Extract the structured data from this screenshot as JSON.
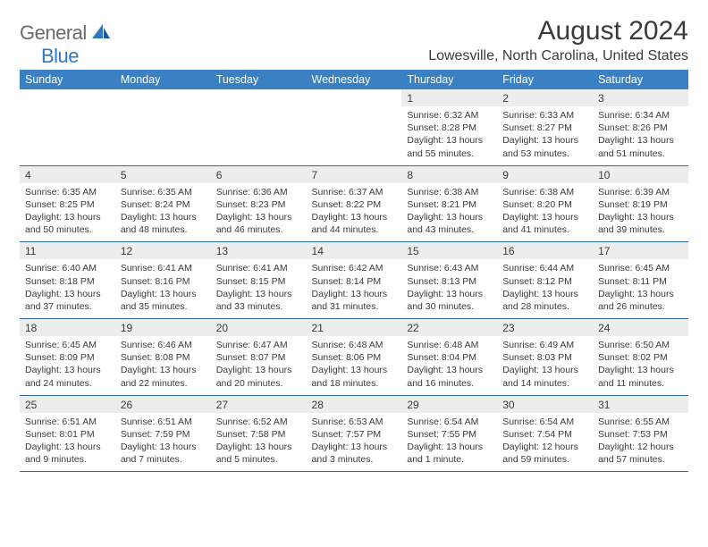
{
  "logo": {
    "text1": "General",
    "text2": "Blue",
    "color_gray": "#6a6a6a",
    "color_blue": "#2f78bd"
  },
  "title": "August 2024",
  "location": "Lowesville, North Carolina, United States",
  "colors": {
    "header_bg": "#3a81c4",
    "header_text": "#ffffff",
    "daynum_bg": "#ededed",
    "border": "#2f6aa8",
    "text": "#3a3a3a",
    "background": "#ffffff"
  },
  "weekdays": [
    "Sunday",
    "Monday",
    "Tuesday",
    "Wednesday",
    "Thursday",
    "Friday",
    "Saturday"
  ],
  "weeks": [
    [
      null,
      null,
      null,
      null,
      {
        "d": "1",
        "sr": "6:32 AM",
        "ss": "8:28 PM",
        "dl": "13 hours and 55 minutes."
      },
      {
        "d": "2",
        "sr": "6:33 AM",
        "ss": "8:27 PM",
        "dl": "13 hours and 53 minutes."
      },
      {
        "d": "3",
        "sr": "6:34 AM",
        "ss": "8:26 PM",
        "dl": "13 hours and 51 minutes."
      }
    ],
    [
      {
        "d": "4",
        "sr": "6:35 AM",
        "ss": "8:25 PM",
        "dl": "13 hours and 50 minutes."
      },
      {
        "d": "5",
        "sr": "6:35 AM",
        "ss": "8:24 PM",
        "dl": "13 hours and 48 minutes."
      },
      {
        "d": "6",
        "sr": "6:36 AM",
        "ss": "8:23 PM",
        "dl": "13 hours and 46 minutes."
      },
      {
        "d": "7",
        "sr": "6:37 AM",
        "ss": "8:22 PM",
        "dl": "13 hours and 44 minutes."
      },
      {
        "d": "8",
        "sr": "6:38 AM",
        "ss": "8:21 PM",
        "dl": "13 hours and 43 minutes."
      },
      {
        "d": "9",
        "sr": "6:38 AM",
        "ss": "8:20 PM",
        "dl": "13 hours and 41 minutes."
      },
      {
        "d": "10",
        "sr": "6:39 AM",
        "ss": "8:19 PM",
        "dl": "13 hours and 39 minutes."
      }
    ],
    [
      {
        "d": "11",
        "sr": "6:40 AM",
        "ss": "8:18 PM",
        "dl": "13 hours and 37 minutes."
      },
      {
        "d": "12",
        "sr": "6:41 AM",
        "ss": "8:16 PM",
        "dl": "13 hours and 35 minutes."
      },
      {
        "d": "13",
        "sr": "6:41 AM",
        "ss": "8:15 PM",
        "dl": "13 hours and 33 minutes."
      },
      {
        "d": "14",
        "sr": "6:42 AM",
        "ss": "8:14 PM",
        "dl": "13 hours and 31 minutes."
      },
      {
        "d": "15",
        "sr": "6:43 AM",
        "ss": "8:13 PM",
        "dl": "13 hours and 30 minutes."
      },
      {
        "d": "16",
        "sr": "6:44 AM",
        "ss": "8:12 PM",
        "dl": "13 hours and 28 minutes."
      },
      {
        "d": "17",
        "sr": "6:45 AM",
        "ss": "8:11 PM",
        "dl": "13 hours and 26 minutes."
      }
    ],
    [
      {
        "d": "18",
        "sr": "6:45 AM",
        "ss": "8:09 PM",
        "dl": "13 hours and 24 minutes."
      },
      {
        "d": "19",
        "sr": "6:46 AM",
        "ss": "8:08 PM",
        "dl": "13 hours and 22 minutes."
      },
      {
        "d": "20",
        "sr": "6:47 AM",
        "ss": "8:07 PM",
        "dl": "13 hours and 20 minutes."
      },
      {
        "d": "21",
        "sr": "6:48 AM",
        "ss": "8:06 PM",
        "dl": "13 hours and 18 minutes."
      },
      {
        "d": "22",
        "sr": "6:48 AM",
        "ss": "8:04 PM",
        "dl": "13 hours and 16 minutes."
      },
      {
        "d": "23",
        "sr": "6:49 AM",
        "ss": "8:03 PM",
        "dl": "13 hours and 14 minutes."
      },
      {
        "d": "24",
        "sr": "6:50 AM",
        "ss": "8:02 PM",
        "dl": "13 hours and 11 minutes."
      }
    ],
    [
      {
        "d": "25",
        "sr": "6:51 AM",
        "ss": "8:01 PM",
        "dl": "13 hours and 9 minutes."
      },
      {
        "d": "26",
        "sr": "6:51 AM",
        "ss": "7:59 PM",
        "dl": "13 hours and 7 minutes."
      },
      {
        "d": "27",
        "sr": "6:52 AM",
        "ss": "7:58 PM",
        "dl": "13 hours and 5 minutes."
      },
      {
        "d": "28",
        "sr": "6:53 AM",
        "ss": "7:57 PM",
        "dl": "13 hours and 3 minutes."
      },
      {
        "d": "29",
        "sr": "6:54 AM",
        "ss": "7:55 PM",
        "dl": "13 hours and 1 minute."
      },
      {
        "d": "30",
        "sr": "6:54 AM",
        "ss": "7:54 PM",
        "dl": "12 hours and 59 minutes."
      },
      {
        "d": "31",
        "sr": "6:55 AM",
        "ss": "7:53 PM",
        "dl": "12 hours and 57 minutes."
      }
    ]
  ],
  "labels": {
    "sunrise": "Sunrise:",
    "sunset": "Sunset:",
    "daylight": "Daylight:"
  }
}
